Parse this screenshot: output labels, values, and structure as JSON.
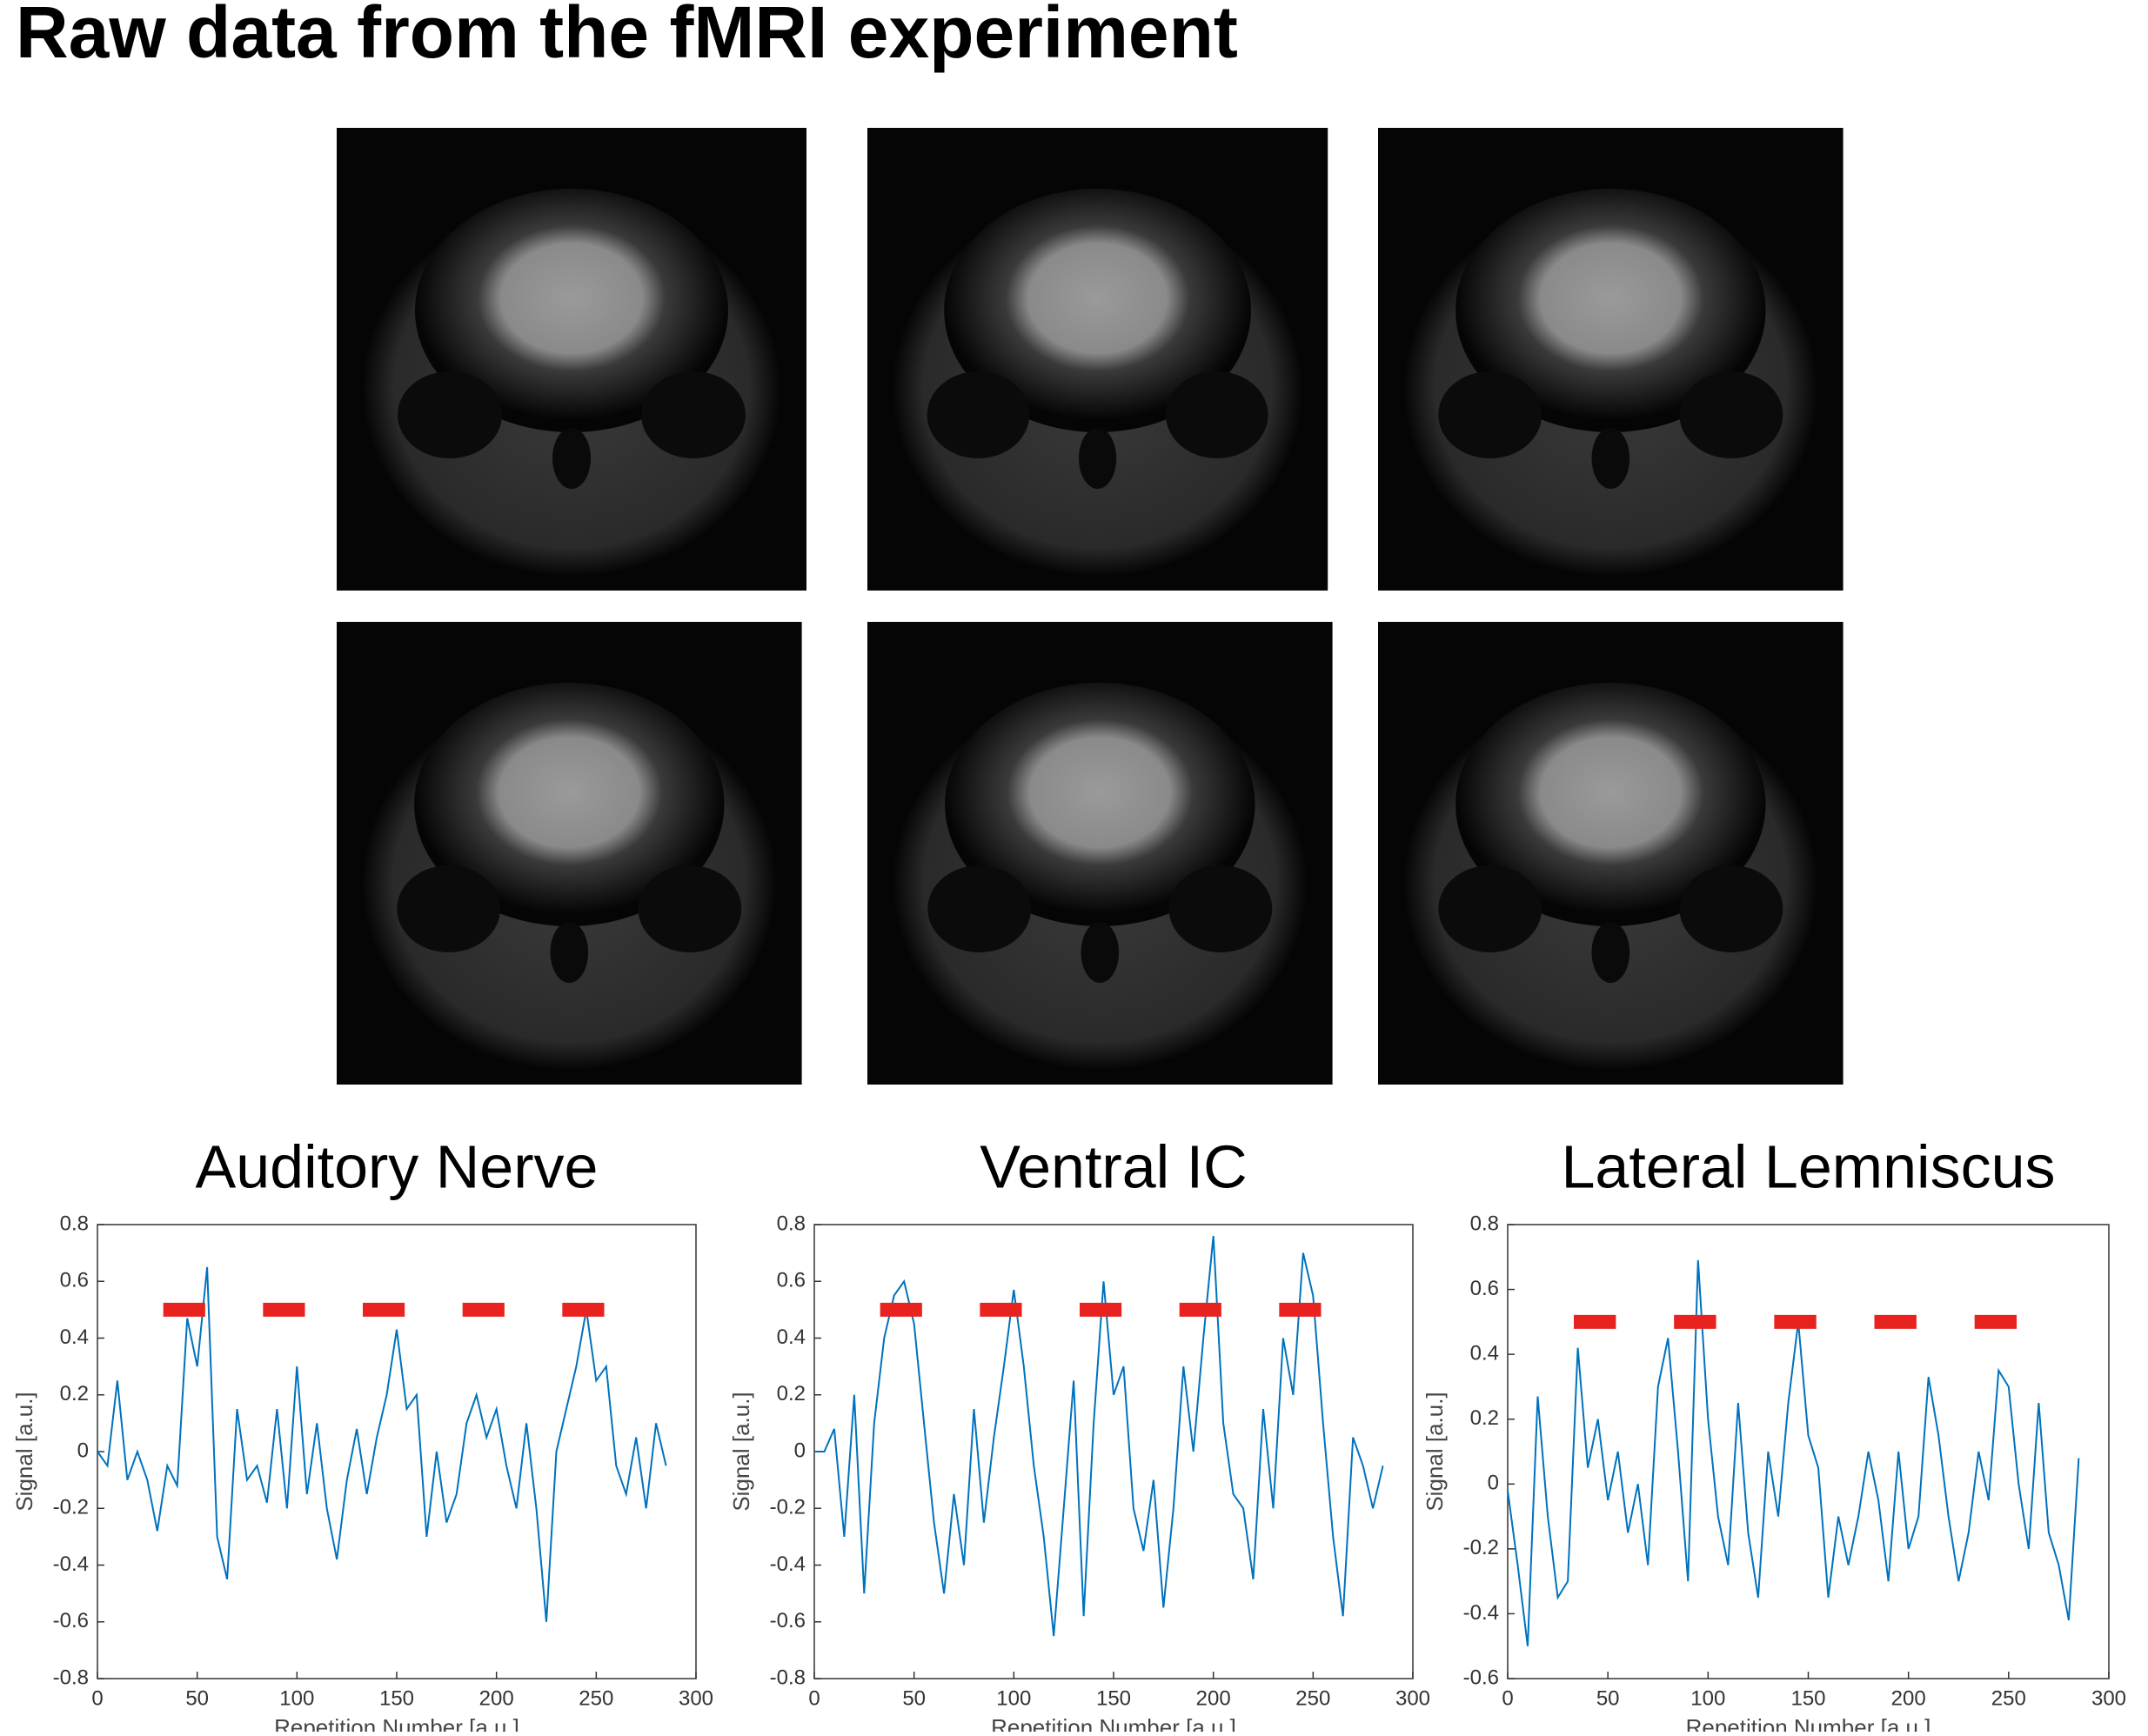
{
  "title": "Raw data from the fMRI experiment",
  "chart_data": [
    {
      "type": "line",
      "title": "Auditory Nerve",
      "xlabel": "Repetition Number [a.u.]",
      "ylabel": "Signal [a.u.]",
      "x": [
        0,
        5,
        10,
        15,
        20,
        25,
        30,
        35,
        40,
        45,
        50,
        55,
        60,
        65,
        70,
        75,
        80,
        85,
        90,
        95,
        100,
        105,
        110,
        115,
        120,
        125,
        130,
        135,
        140,
        145,
        150,
        155,
        160,
        165,
        170,
        175,
        180,
        185,
        190,
        195,
        200,
        205,
        210,
        215,
        220,
        225,
        230,
        235,
        240,
        245,
        250,
        255,
        260,
        265,
        270,
        275,
        280,
        285
      ],
      "series": [
        {
          "color": "#0072bd",
          "values": [
            0,
            -0.05,
            0.25,
            -0.1,
            0,
            -0.1,
            -0.28,
            -0.05,
            -0.12,
            0.47,
            0.3,
            0.65,
            -0.3,
            -0.45,
            0.15,
            -0.1,
            -0.05,
            -0.18,
            0.15,
            -0.2,
            0.3,
            -0.15,
            0.1,
            -0.2,
            -0.38,
            -0.1,
            0.08,
            -0.15,
            0.05,
            0.2,
            0.43,
            0.15,
            0.2,
            -0.3,
            0,
            -0.25,
            -0.15,
            0.1,
            0.2,
            0.05,
            0.15,
            -0.05,
            -0.2,
            0.1,
            -0.2,
            -0.6,
            0,
            0.15,
            0.3,
            0.5,
            0.25,
            0.3,
            -0.05,
            -0.15,
            0.05,
            -0.2,
            0.1,
            -0.05
          ]
        }
      ],
      "stimulus_blocks": {
        "color": "#e8221f",
        "level": 0.5,
        "ranges": [
          [
            33,
            54
          ],
          [
            83,
            104
          ],
          [
            133,
            154
          ],
          [
            183,
            204
          ],
          [
            233,
            254
          ]
        ]
      },
      "xlim": [
        0,
        300
      ],
      "xticks": [
        0,
        50,
        100,
        150,
        200,
        250,
        300
      ],
      "ylim": [
        -0.8,
        0.8
      ],
      "yticks": [
        -0.8,
        -0.6,
        -0.4,
        -0.2,
        0,
        0.2,
        0.4,
        0.6,
        0.8
      ]
    },
    {
      "type": "line",
      "title": "Ventral IC",
      "xlabel": "Repetition Number [a.u.]",
      "ylabel": "Signal [a.u.]",
      "x": [
        0,
        5,
        10,
        15,
        20,
        25,
        30,
        35,
        40,
        45,
        50,
        55,
        60,
        65,
        70,
        75,
        80,
        85,
        90,
        95,
        100,
        105,
        110,
        115,
        120,
        125,
        130,
        135,
        140,
        145,
        150,
        155,
        160,
        165,
        170,
        175,
        180,
        185,
        190,
        195,
        200,
        205,
        210,
        215,
        220,
        225,
        230,
        235,
        240,
        245,
        250,
        255,
        260,
        265,
        270,
        275,
        280,
        285
      ],
      "series": [
        {
          "color": "#0072bd",
          "values": [
            0,
            0,
            0.08,
            -0.3,
            0.2,
            -0.5,
            0.1,
            0.4,
            0.55,
            0.6,
            0.45,
            0.1,
            -0.25,
            -0.5,
            -0.15,
            -0.4,
            0.15,
            -0.25,
            0.05,
            0.3,
            0.57,
            0.3,
            -0.05,
            -0.3,
            -0.65,
            -0.2,
            0.25,
            -0.58,
            0.1,
            0.6,
            0.2,
            0.3,
            -0.2,
            -0.35,
            -0.1,
            -0.55,
            -0.2,
            0.3,
            0,
            0.4,
            0.76,
            0.1,
            -0.15,
            -0.2,
            -0.45,
            0.15,
            -0.2,
            0.4,
            0.2,
            0.7,
            0.55,
            0.1,
            -0.3,
            -0.58,
            0.05,
            -0.05,
            -0.2,
            -0.05
          ]
        }
      ],
      "stimulus_blocks": {
        "color": "#e8221f",
        "level": 0.5,
        "ranges": [
          [
            33,
            54
          ],
          [
            83,
            104
          ],
          [
            133,
            154
          ],
          [
            183,
            204
          ],
          [
            233,
            254
          ]
        ]
      },
      "xlim": [
        0,
        300
      ],
      "xticks": [
        0,
        50,
        100,
        150,
        200,
        250,
        300
      ],
      "ylim": [
        -0.8,
        0.8
      ],
      "yticks": [
        -0.8,
        -0.6,
        -0.4,
        -0.2,
        0,
        0.2,
        0.4,
        0.6,
        0.8
      ]
    },
    {
      "type": "line",
      "title": "Lateral Lemniscus",
      "xlabel": "Repetition Number [a.u.]",
      "ylabel": "Signal [a.u.]",
      "x": [
        0,
        5,
        10,
        15,
        20,
        25,
        30,
        35,
        40,
        45,
        50,
        55,
        60,
        65,
        70,
        75,
        80,
        85,
        90,
        95,
        100,
        105,
        110,
        115,
        120,
        125,
        130,
        135,
        140,
        145,
        150,
        155,
        160,
        165,
        170,
        175,
        180,
        185,
        190,
        195,
        200,
        205,
        210,
        215,
        220,
        225,
        230,
        235,
        240,
        245,
        250,
        255,
        260,
        265,
        270,
        275,
        280,
        285
      ],
      "series": [
        {
          "color": "#0072bd",
          "values": [
            -0.02,
            -0.25,
            -0.5,
            0.27,
            -0.1,
            -0.35,
            -0.3,
            0.42,
            0.05,
            0.2,
            -0.05,
            0.1,
            -0.15,
            0,
            -0.25,
            0.3,
            0.45,
            0.1,
            -0.3,
            0.69,
            0.2,
            -0.1,
            -0.25,
            0.25,
            -0.15,
            -0.35,
            0.1,
            -0.1,
            0.25,
            0.5,
            0.15,
            0.05,
            -0.35,
            -0.1,
            -0.25,
            -0.1,
            0.1,
            -0.05,
            -0.3,
            0.1,
            -0.2,
            -0.1,
            0.33,
            0.15,
            -0.1,
            -0.3,
            -0.15,
            0.1,
            -0.05,
            0.35,
            0.3,
            0,
            -0.2,
            0.25,
            -0.15,
            -0.25,
            -0.42,
            0.08
          ]
        }
      ],
      "stimulus_blocks": {
        "color": "#e8221f",
        "level": 0.5,
        "ranges": [
          [
            33,
            54
          ],
          [
            83,
            104
          ],
          [
            133,
            154
          ],
          [
            183,
            204
          ],
          [
            233,
            254
          ]
        ]
      },
      "xlim": [
        0,
        300
      ],
      "xticks": [
        0,
        50,
        100,
        150,
        200,
        250,
        300
      ],
      "ylim": [
        -0.6,
        0.8
      ],
      "yticks": [
        -0.6,
        -0.4,
        -0.2,
        0,
        0.2,
        0.4,
        0.6,
        0.8
      ]
    }
  ]
}
